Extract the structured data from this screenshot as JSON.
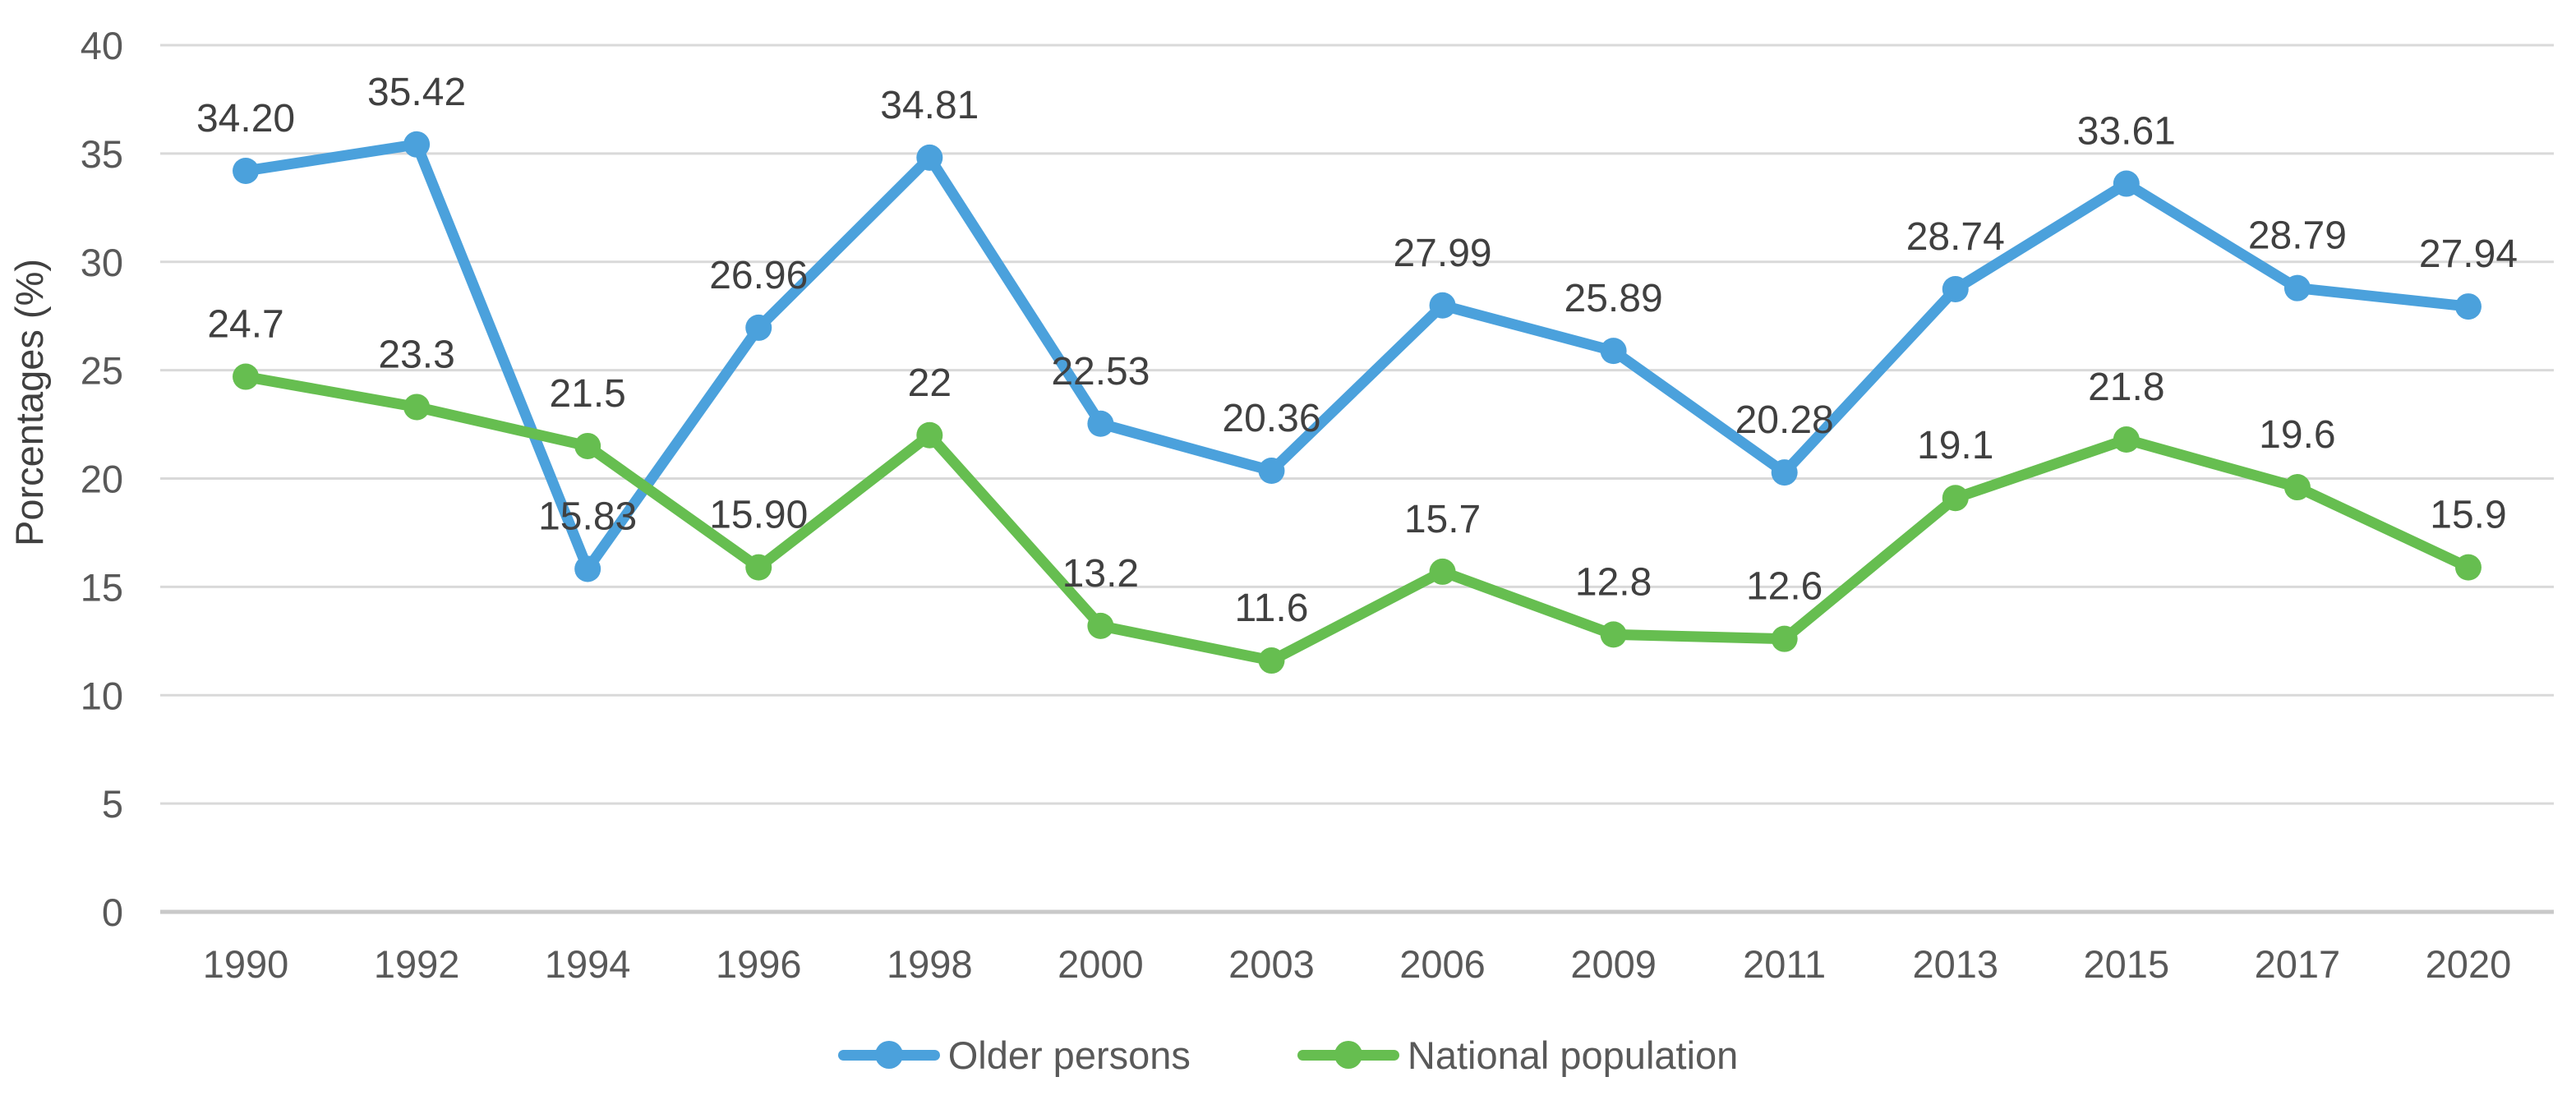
{
  "figure": {
    "background_color": "#ffffff",
    "grid_color": "#d9d9d9",
    "axis_line_color": "#c9c9c9",
    "tick_label_color": "#595959",
    "data_label_color": "#404040",
    "axis_title_color": "#404040"
  },
  "chart_data": {
    "type": "line",
    "title": "",
    "xlabel": "",
    "ylabel": "Porcentages (%)",
    "ylim": [
      0,
      40
    ],
    "yticks": [
      0,
      5,
      10,
      15,
      20,
      25,
      30,
      35,
      40
    ],
    "grid": true,
    "legend_position": "bottom",
    "categories": [
      "1990",
      "1992",
      "1994",
      "1996",
      "1998",
      "2000",
      "2003",
      "2006",
      "2009",
      "2011",
      "2013",
      "2015",
      "2017",
      "2020"
    ],
    "series": [
      {
        "name": "Older persons",
        "color": "#4ba1dc",
        "values": [
          34.2,
          35.42,
          15.83,
          26.96,
          34.81,
          22.53,
          20.36,
          27.99,
          25.89,
          20.28,
          28.74,
          33.61,
          28.79,
          27.94
        ],
        "labels": [
          "34.20",
          "35.42",
          "15.83",
          "26.96",
          "34.81",
          "22.53",
          "20.36",
          "27.99",
          "25.89",
          "20.28",
          "28.74",
          "33.61",
          "28.79",
          "27.94"
        ]
      },
      {
        "name": "National population",
        "color": "#66be50",
        "values": [
          24.7,
          23.3,
          21.5,
          15.9,
          22,
          13.2,
          11.6,
          15.7,
          12.8,
          12.6,
          19.1,
          21.8,
          19.6,
          15.9
        ],
        "labels": [
          "24.7",
          "23.3",
          "21.5",
          "15.90",
          "22",
          "13.2",
          "11.6",
          "15.7",
          "12.8",
          "12.6",
          "19.1",
          "21.8",
          "19.6",
          "15.9"
        ]
      }
    ]
  }
}
